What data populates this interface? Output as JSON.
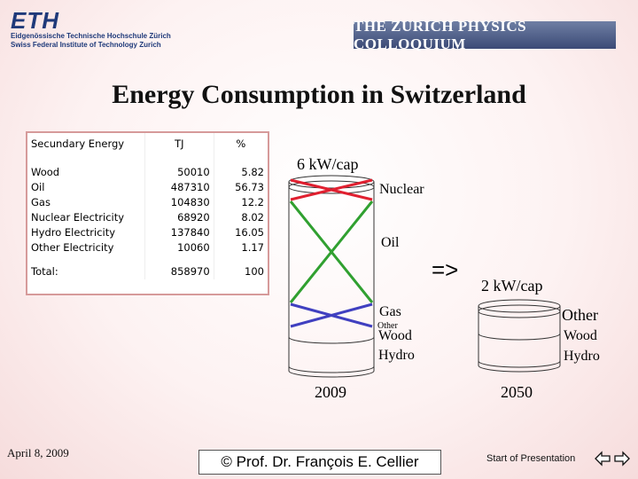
{
  "header": {
    "logo_text": "ETH",
    "logo_line1": "Eidgenössische Technische Hochschule Zürich",
    "logo_line2": "Swiss Federal Institute of Technology Zurich",
    "banner": "THE ZURICH PHYSICS COLLOQUIUM"
  },
  "title": "Energy Consumption in Switzerland",
  "table": {
    "headers": [
      "Secundary Energy",
      "TJ",
      "%"
    ],
    "rows": [
      [
        "Wood",
        "50010",
        "5.82"
      ],
      [
        "Oil",
        "487310",
        "56.73"
      ],
      [
        "Gas",
        "104830",
        "12.2"
      ],
      [
        "Nuclear Electricity",
        "68920",
        "8.02"
      ],
      [
        "Hydro Electricity",
        "137840",
        "16.05"
      ],
      [
        "Other Electricity",
        "10060",
        "1.17"
      ]
    ],
    "total": [
      "Total:",
      "858970",
      "100"
    ]
  },
  "diagram": {
    "left_power": "6 kW/cap",
    "labels_2009": [
      "Nuclear",
      "Oil",
      "Gas",
      "Other",
      "Wood",
      "Hydro"
    ],
    "year_left": "2009",
    "arrow": "=>",
    "right_power": "2 kW/cap",
    "labels_2050": [
      "Other",
      "Wood",
      "Hydro"
    ],
    "year_right": "2050",
    "colors": {
      "cross_top": "#e02030",
      "cross_middle": "#30a030",
      "cross_bottom": "#4040c0"
    }
  },
  "footer": {
    "date": "April 8, 2009",
    "copyright": "© Prof. Dr. François E. Cellier",
    "start": "Start of Presentation",
    "nav_left_icon": "arrow-left-icon",
    "nav_right_icon": "arrow-right-icon"
  }
}
